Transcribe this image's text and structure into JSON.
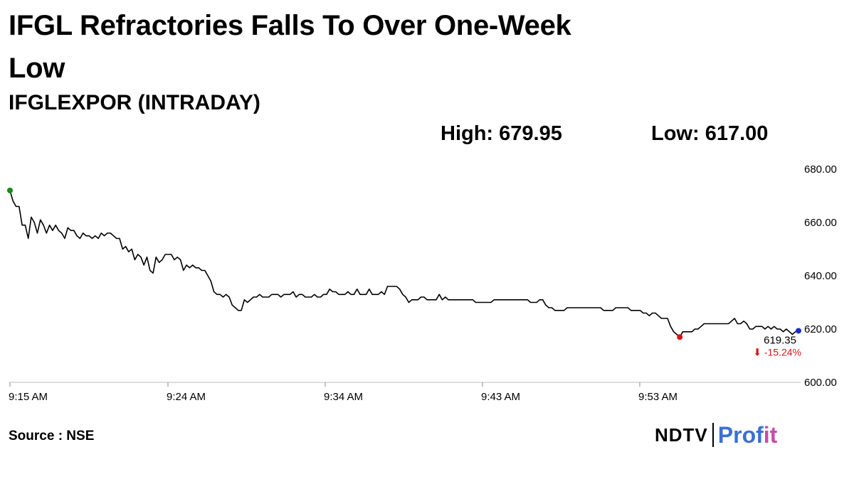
{
  "header": {
    "title": "IFGL Refractories Falls To Over One-Week Low",
    "subtitle": "IFGLEXPOR (INTRADAY)",
    "high_text": "High: 679.95",
    "low_text": "Low: 617.00"
  },
  "footer": {
    "source": "Source : NSE",
    "logo_ndtv": "NDTV",
    "logo_profit_a": "Prof",
    "logo_profit_b": "it"
  },
  "chart_data": {
    "type": "line",
    "title": "IFGLEXPOR (INTRADAY)",
    "xlabel": "",
    "ylabel": "",
    "x_ticks": [
      "9:15 AM",
      "9:24 AM",
      "9:34 AM",
      "9:43 AM",
      "9:53 AM"
    ],
    "y_ticks": [
      "680.00",
      "660.00",
      "640.00",
      "620.00",
      "600.00"
    ],
    "ylim": [
      600,
      680
    ],
    "xlim_minutes_from_open": [
      0,
      45
    ],
    "grid": false,
    "high": 679.95,
    "low": 617.0,
    "last_price": "619.35",
    "change": "-15.24%",
    "colors": {
      "line": "#000000",
      "start": "#1a8a1a",
      "low_point": "#e01010",
      "end": "#1a2fc8",
      "change": "#d01818"
    },
    "series": [
      {
        "values": [
          672,
          668,
          666,
          666,
          659,
          659,
          654,
          662,
          660,
          656,
          661,
          659,
          656,
          659,
          657,
          659,
          657,
          656,
          654,
          658,
          657,
          657,
          655,
          654,
          656,
          655,
          655,
          654,
          655,
          654,
          656,
          655,
          656,
          656,
          655,
          654,
          654,
          650,
          651,
          649,
          650,
          646,
          648,
          647,
          644,
          647,
          642,
          641,
          647,
          645,
          646,
          648,
          648,
          648,
          646,
          647,
          646,
          642,
          644,
          643,
          644,
          643,
          643,
          642,
          642,
          640,
          638,
          634,
          633,
          633,
          632,
          633,
          632,
          629,
          628,
          627,
          627,
          631,
          630,
          631,
          632,
          632,
          633,
          632,
          632,
          632,
          633,
          633,
          633,
          632,
          633,
          633,
          633,
          634,
          632,
          633,
          633,
          632,
          632,
          632,
          633,
          632,
          632,
          633,
          633,
          635,
          634,
          634,
          633,
          633,
          633,
          634,
          633,
          633,
          635,
          633,
          633,
          633,
          635,
          633,
          633,
          633,
          634,
          633,
          636,
          636,
          636,
          636,
          635,
          633,
          632,
          630,
          631,
          631,
          631,
          632,
          632,
          631,
          631,
          631,
          631,
          633,
          631,
          632,
          631,
          631,
          631,
          631,
          631,
          631,
          631,
          631,
          631,
          630,
          630,
          630,
          630,
          630,
          630,
          631,
          631,
          631,
          631,
          631,
          631,
          631,
          631,
          631,
          631,
          631,
          631,
          630,
          630,
          630,
          631,
          631,
          629,
          628,
          628,
          627,
          627,
          627,
          627,
          628,
          628,
          628,
          628,
          628,
          628,
          628,
          628,
          628,
          628,
          628,
          628,
          627,
          627,
          627,
          627,
          628,
          628,
          628,
          628,
          628,
          627,
          627,
          627,
          627,
          626,
          626,
          625,
          626,
          626,
          625,
          624,
          624,
          624,
          621,
          619,
          618,
          617,
          619,
          619,
          619,
          619,
          620,
          620,
          621,
          622,
          622,
          622,
          622,
          622,
          622,
          622,
          622,
          622,
          623,
          624,
          622,
          622,
          623,
          622,
          620,
          620,
          621,
          621,
          621,
          620,
          621,
          620,
          621,
          620,
          620,
          619,
          620,
          619,
          618,
          619,
          619.35
        ]
      }
    ]
  }
}
